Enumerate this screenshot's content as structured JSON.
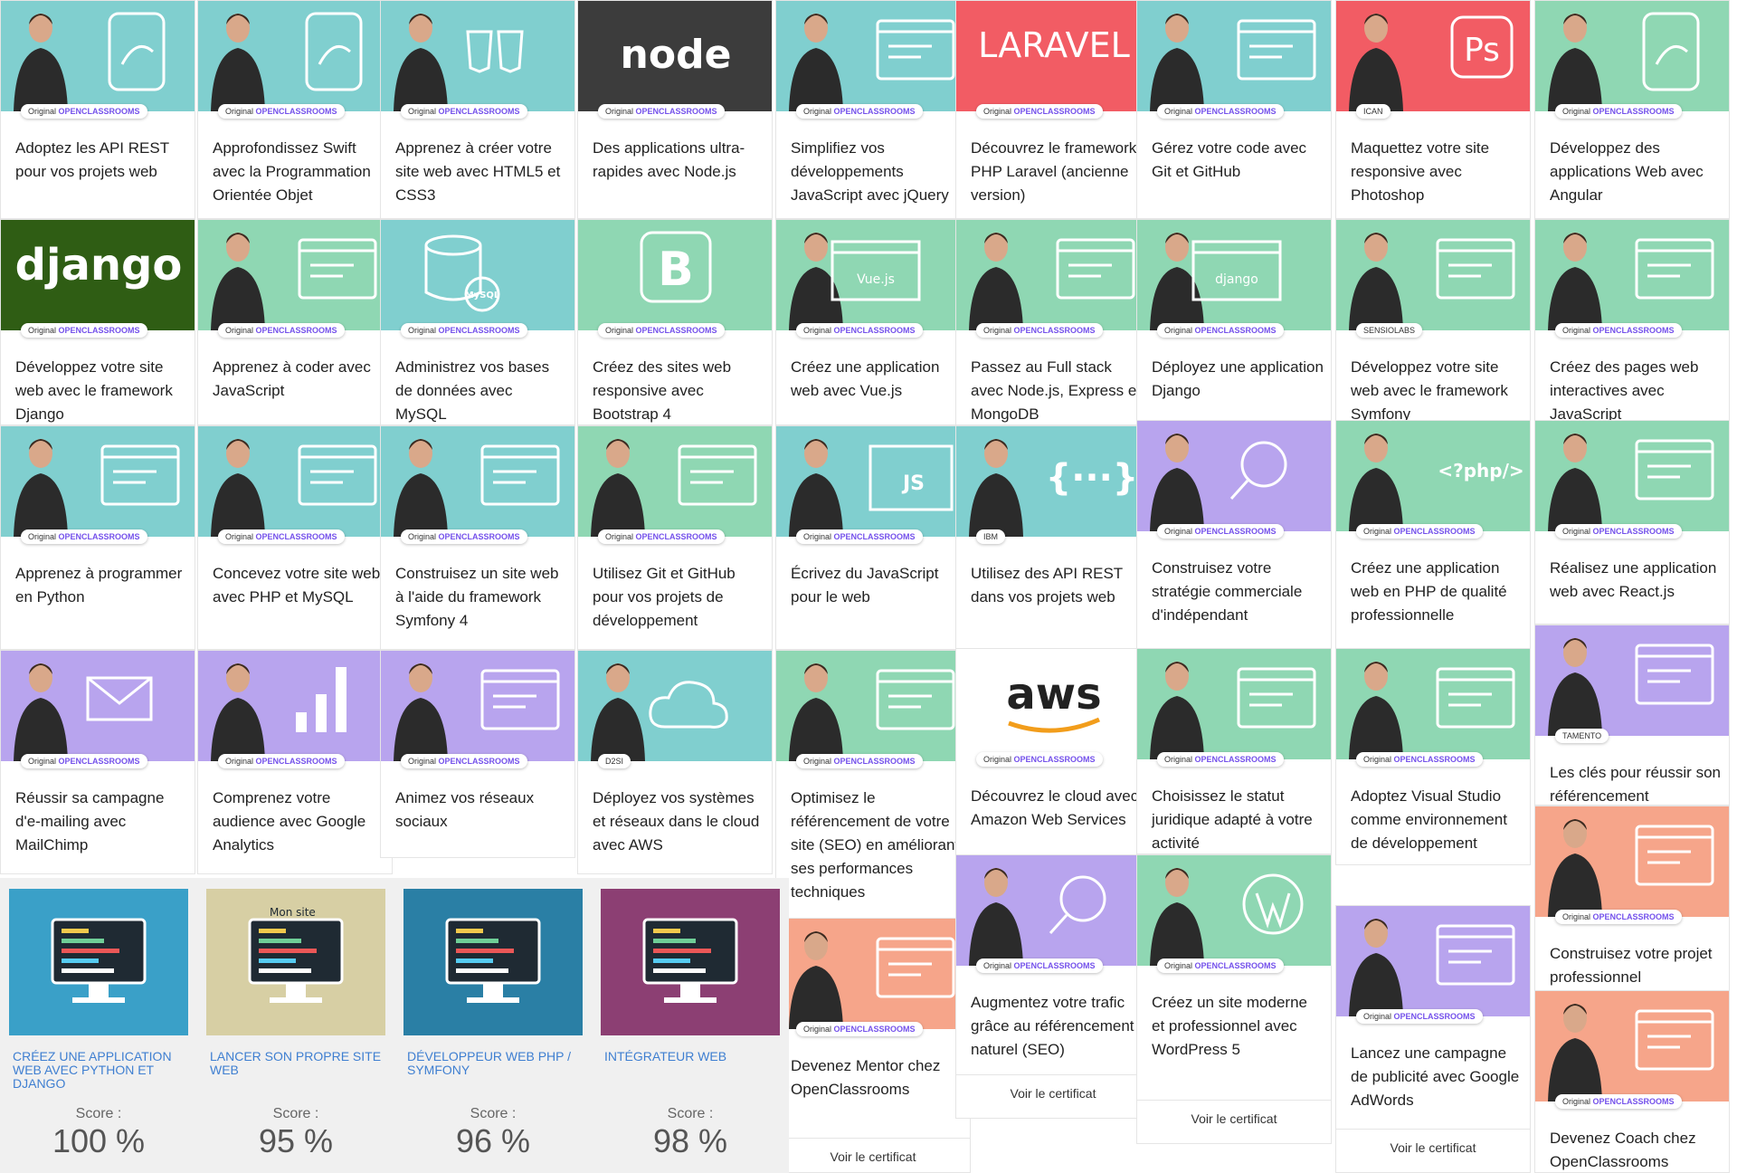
{
  "colors": {
    "teal": "#80cfcf",
    "mint": "#8fd7b3",
    "lavender": "#b8a4ee",
    "coral": "#f6a58a",
    "red": "#f25c64",
    "brand": "#7451eb",
    "node_bg": "#3c3c3c",
    "django_bg": "#2f5d14",
    "path_link": "#3f7fd1"
  },
  "badge": {
    "prefix": "Original",
    "brand": "OPENCLASSROOMS"
  },
  "courses": [
    {
      "title": "Adoptez les API REST pour vos projets web",
      "icon": "plug-api-icon"
    },
    {
      "title": "Approfondissez Swift avec la Programmation Orientée Objet",
      "icon": "swift-icon"
    },
    {
      "title": "Apprenez à créer votre site web avec HTML5 et CSS3",
      "icon": "html5-css3-icon"
    },
    {
      "title": "Des applications ultra-rapides avec Node.js",
      "icon": "nodejs-logo",
      "logo_text": "node"
    },
    {
      "title": "Simplifiez vos développements JavaScript avec jQuery",
      "icon": "browser-code-icon"
    },
    {
      "title": "Découvrez le framework PHP Laravel (ancienne version)",
      "icon": "laravel-logo",
      "logo_text": "LARAVEL"
    },
    {
      "title": "Gérez votre code avec Git et GitHub",
      "icon": "git-window-icon"
    },
    {
      "title": "Maquettez votre site responsive avec Photoshop",
      "icon": "photoshop-icon",
      "logo_text": "Ps",
      "partner": "ICAN"
    },
    {
      "title": "Développez des applications Web avec Angular",
      "icon": "angular-icon"
    },
    {
      "title": "Développez votre site web avec le framework Django",
      "icon": "django-logo",
      "logo_text": "django"
    },
    {
      "title": "Apprenez à coder avec JavaScript",
      "icon": "js-graduation-icon"
    },
    {
      "title": "Administrez vos bases de données avec MySQL",
      "icon": "mysql-database-icon",
      "logo_text": "MySQL"
    },
    {
      "title": "Créez des sites web responsive avec Bootstrap 4",
      "icon": "bootstrap-icon",
      "logo_text": "B"
    },
    {
      "title": "Créez une application web avec Vue.js",
      "icon": "vuejs-window-icon",
      "logo_text": "Vue.js"
    },
    {
      "title": "Passez au Full stack avec Node.js, Express et MongoDB",
      "icon": "fullstack-gear-icon"
    },
    {
      "title": "Déployez une application Django",
      "icon": "django-window-icon",
      "logo_text": "django"
    },
    {
      "title": "Développez votre site web avec le framework Symfony",
      "icon": "symfony-window-icon",
      "partner": "SENSIOLABS"
    },
    {
      "title": "Créez des pages web interactives avec JavaScript",
      "icon": "js-window-hand-icon"
    },
    {
      "title": "Apprenez à programmer en Python",
      "icon": "python-icon"
    },
    {
      "title": "Concevez votre site web avec PHP et MySQL",
      "icon": "php-design-icon"
    },
    {
      "title": "Construisez un site web à l'aide du framework Symfony 4",
      "icon": "symfony-icon"
    },
    {
      "title": "Utilisez Git et GitHub pour vos projets de développement",
      "icon": "git-logo-icon"
    },
    {
      "title": "Écrivez du JavaScript pour le web",
      "icon": "js-browser-icon",
      "logo_text": "JS"
    },
    {
      "title": "Utilisez des API REST dans vos projets web",
      "icon": "braces-icon",
      "logo_text": "{···}",
      "partner": "IBM"
    },
    {
      "title": "Construisez votre stratégie commerciale d'indépendant",
      "icon": "target-dollar-icon"
    },
    {
      "title": "Créez une application web en PHP de qualité professionnelle",
      "icon": "php-code-icon",
      "logo_text": "<?php/>"
    },
    {
      "title": "Réalisez une application web avec React.js",
      "icon": "react-monitor-icon"
    },
    {
      "title": "Réussir sa campagne d'e-mailing avec MailChimp",
      "icon": "envelope-icon"
    },
    {
      "title": "Comprenez votre audience avec Google Analytics",
      "icon": "analytics-bars-icon"
    },
    {
      "title": "Animez vos réseaux sociaux",
      "icon": "thumbs-up-icon"
    },
    {
      "title": "Déployez vos systèmes et réseaux dans le cloud avec AWS",
      "icon": "cloud-icon",
      "partner": "D2SI"
    },
    {
      "title": "Optimisez le référencement de votre site (SEO) en améliorant ses performances techniques",
      "icon": "seo-gauge-icon"
    },
    {
      "title": "Découvrez le cloud avec Amazon Web Services",
      "icon": "aws-logo",
      "logo_text": "aws"
    },
    {
      "title": "Choisissez le statut juridique adapté à votre activité",
      "icon": "calendar-gear-icon"
    },
    {
      "title": "Adoptez Visual Studio comme environnement de développement",
      "icon": "visual-studio-icon"
    },
    {
      "title": "Les clés pour réussir son référencement",
      "icon": "megaphone-icon",
      "partner": "TAMENTO"
    },
    {
      "title": "Devenez Mentor chez OpenClassrooms",
      "icon": "mentor-people-icon"
    },
    {
      "title": "Augmentez votre trafic grâce au référencement naturel (SEO)",
      "icon": "magnifier-icon",
      "cert": "Voir le certificat"
    },
    {
      "title": "Créez un site moderne et professionnel avec WordPress 5",
      "icon": "wordpress-icon",
      "cert": "Voir le certificat"
    },
    {
      "title": "Lancez une campagne de publicité avec Google AdWords",
      "icon": "rocket-window-icon",
      "cert": "Voir le certificat"
    },
    {
      "title": "Construisez votre projet professionnel",
      "icon": "document-person-icon"
    },
    {
      "title": "Devenez Coach chez OpenClassrooms",
      "icon": "coach-person-icon"
    }
  ],
  "mentor_cert": "Voir le certificat",
  "paths": [
    {
      "title": "CRÉEZ UNE APPLICATION WEB AVEC PYTHON ET DJANGO",
      "score_label": "Score :",
      "score": "100 %"
    },
    {
      "title": "LANCER SON PROPRE SITE WEB",
      "score_label": "Score :",
      "score": "95 %",
      "image_text": "Mon site"
    },
    {
      "title": "DÉVELOPPEUR WEB PHP / SYMFONY",
      "score_label": "Score :",
      "score": "96 %"
    },
    {
      "title": "INTÉGRATEUR WEB",
      "score_label": "Score :",
      "score": "98 %"
    }
  ]
}
